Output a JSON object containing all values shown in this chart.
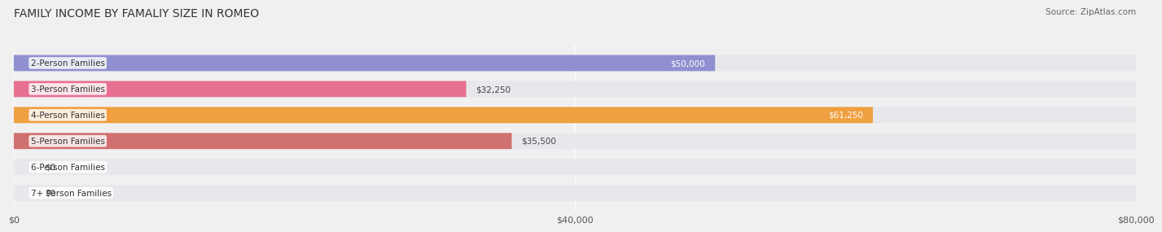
{
  "title": "FAMILY INCOME BY FAMALIY SIZE IN ROMEO",
  "source": "Source: ZipAtlas.com",
  "categories": [
    "2-Person Families",
    "3-Person Families",
    "4-Person Families",
    "5-Person Families",
    "6-Person Families",
    "7+ Person Families"
  ],
  "values": [
    50000,
    32250,
    61250,
    35500,
    0,
    0
  ],
  "bar_colors": [
    "#9090d0",
    "#e87090",
    "#f0a040",
    "#d07070",
    "#a0b8d8",
    "#c0a8d0"
  ],
  "value_labels": [
    "$50,000",
    "$32,250",
    "$61,250",
    "$35,500",
    "$0",
    "$0"
  ],
  "value_label_colors": [
    "white",
    "#444444",
    "white",
    "#444444",
    "#444444",
    "#444444"
  ],
  "xlim": [
    0,
    80000
  ],
  "xticks": [
    0,
    40000,
    80000
  ],
  "xtick_labels": [
    "$0",
    "$40,000",
    "$80,000"
  ],
  "background_color": "#f0f0f0",
  "bar_bg_color": "#e8e8ec",
  "label_fontsize": 7.5,
  "value_fontsize": 7.5,
  "title_fontsize": 10,
  "bar_height": 0.62,
  "rounding_size": 0.28
}
